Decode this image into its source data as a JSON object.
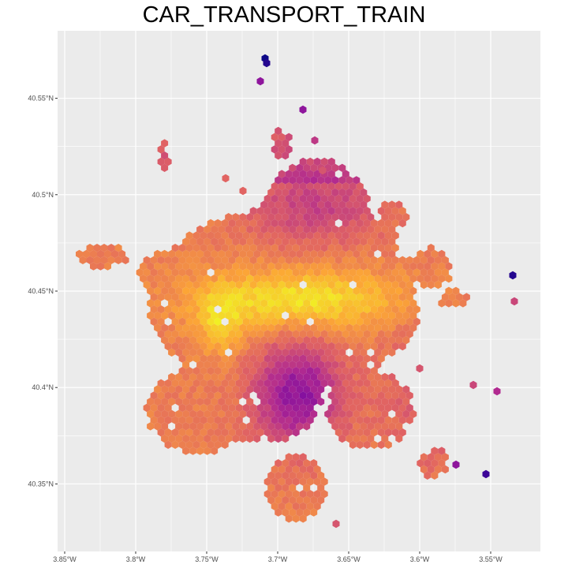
{
  "title": "CAR_TRANSPORT_TRAIN",
  "map": {
    "panel_background": "#ebebeb",
    "grid_color": "#ffffff",
    "color_scale": "plasma",
    "palette": [
      "#0d0887",
      "#6a00a8",
      "#b12a90",
      "#e16462",
      "#fca636",
      "#f0f921"
    ],
    "x_ticks": [
      {
        "value": -3.85,
        "label": "3.85°W"
      },
      {
        "value": -3.8,
        "label": "3.8°W"
      },
      {
        "value": -3.75,
        "label": "3.75°W"
      },
      {
        "value": -3.7,
        "label": "3.7°W"
      },
      {
        "value": -3.65,
        "label": "3.65°W"
      },
      {
        "value": -3.6,
        "label": "3.6°W"
      },
      {
        "value": -3.55,
        "label": "3.55°W"
      }
    ],
    "y_ticks": [
      {
        "value": 40.55,
        "label": "40.55°N"
      },
      {
        "value": 40.5,
        "label": "40.5°N"
      },
      {
        "value": 40.45,
        "label": "40.45°N"
      },
      {
        "value": 40.4,
        "label": "40.4°N"
      },
      {
        "value": 40.35,
        "label": "40.35°N"
      }
    ],
    "xlim": [
      -3.855,
      -3.515
    ],
    "ylim": [
      40.315,
      40.585
    ]
  }
}
